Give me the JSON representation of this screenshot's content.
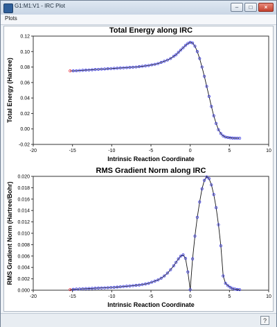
{
  "window": {
    "title": "G1:M1:V1 - IRC Plot"
  },
  "menu": {
    "items": [
      "Plots"
    ]
  },
  "buttons": {
    "minimize": "–",
    "maximize": "□",
    "close": "×"
  },
  "status": {
    "help": "?"
  },
  "colors": {
    "line": "#111111",
    "marker": "#3a3ae6",
    "start_marker": "#ee3344"
  },
  "chart_data": [
    {
      "type": "line",
      "title": "Total Energy along IRC",
      "xlabel": "Intrinsic Reaction Coordinate",
      "ylabel": "Total Energy (Hartree)",
      "xlim": [
        -20,
        10
      ],
      "ylim": [
        -0.02,
        0.12
      ],
      "xticks": [
        "-20",
        "-15",
        "-10",
        "-5",
        "0",
        "5",
        "10"
      ],
      "yticks": [
        "-0.02",
        "0.00",
        "0.02",
        "0.04",
        "0.06",
        "0.08",
        "0.10",
        "0.12"
      ],
      "grid": false,
      "series": [
        {
          "x": [
            -15.3,
            -14.9,
            -14.5,
            -14.1,
            -13.7,
            -13.3,
            -12.9,
            -12.5,
            -12.1,
            -11.7,
            -11.3,
            -10.9,
            -10.5,
            -10.1,
            -9.7,
            -9.3,
            -8.9,
            -8.5,
            -8.1,
            -7.7,
            -7.3,
            -6.9,
            -6.5,
            -6.1,
            -5.7,
            -5.3,
            -4.9,
            -4.5,
            -4.1,
            -3.7,
            -3.3,
            -2.9,
            -2.5,
            -2.1,
            -1.8,
            -1.5,
            -1.2,
            -0.9,
            -0.6,
            -0.3,
            0.0,
            0.3,
            0.6,
            0.9,
            1.2,
            1.5,
            1.8,
            2.1,
            2.4,
            2.7,
            3.0,
            3.3,
            3.6,
            3.9,
            4.2,
            4.5,
            4.8,
            5.1,
            5.4,
            5.7,
            6.0,
            6.3
          ],
          "y": [
            0.075,
            0.075,
            0.0752,
            0.0755,
            0.0758,
            0.076,
            0.0762,
            0.0765,
            0.0768,
            0.077,
            0.0773,
            0.0775,
            0.0778,
            0.078,
            0.0783,
            0.0785,
            0.0788,
            0.079,
            0.0793,
            0.0795,
            0.0798,
            0.08,
            0.0805,
            0.081,
            0.0815,
            0.082,
            0.0828,
            0.0835,
            0.0845,
            0.086,
            0.0875,
            0.089,
            0.091,
            0.094,
            0.096,
            0.099,
            0.102,
            0.105,
            0.108,
            0.1105,
            0.112,
            0.111,
            0.107,
            0.1,
            0.091,
            0.08,
            0.068,
            0.055,
            0.042,
            0.029,
            0.017,
            0.007,
            -0.001,
            -0.006,
            -0.009,
            -0.0105,
            -0.011,
            -0.0115,
            -0.0118,
            -0.0119,
            -0.012,
            -0.012
          ]
        }
      ]
    },
    {
      "type": "line",
      "title": "RMS Gradient Norm along IRC",
      "xlabel": "Intrinsic Reaction Coordinate",
      "ylabel": "RMS Gradient Norm (Hartree/Bohr)",
      "xlim": [
        -20,
        10
      ],
      "ylim": [
        0,
        0.02
      ],
      "xticks": [
        "-20",
        "-15",
        "-10",
        "-5",
        "0",
        "5",
        "10"
      ],
      "yticks": [
        "0.000",
        "0.002",
        "0.004",
        "0.006",
        "0.008",
        "0.010",
        "0.012",
        "0.014",
        "0.016",
        "0.018",
        "0.020"
      ],
      "grid": false,
      "series": [
        {
          "x": [
            -15.3,
            -14.9,
            -14.5,
            -14.1,
            -13.7,
            -13.3,
            -12.9,
            -12.5,
            -12.1,
            -11.7,
            -11.3,
            -10.9,
            -10.5,
            -10.1,
            -9.7,
            -9.3,
            -8.9,
            -8.5,
            -8.1,
            -7.7,
            -7.3,
            -6.9,
            -6.5,
            -6.1,
            -5.7,
            -5.3,
            -4.9,
            -4.5,
            -4.1,
            -3.7,
            -3.3,
            -2.9,
            -2.5,
            -2.1,
            -1.8,
            -1.5,
            -1.2,
            -0.9,
            -0.6,
            -0.3,
            0.0,
            0.3,
            0.6,
            0.9,
            1.2,
            1.5,
            1.8,
            2.1,
            2.4,
            2.7,
            3.0,
            3.3,
            3.6,
            3.9,
            4.2,
            4.5,
            4.8,
            5.1,
            5.4,
            5.7,
            6.0,
            6.3
          ],
          "y": [
            0.0001,
            0.00015,
            0.0002,
            0.00022,
            0.00025,
            0.00028,
            0.0003,
            0.00032,
            0.00035,
            0.00038,
            0.0004,
            0.00042,
            0.00045,
            0.00048,
            0.0005,
            0.00055,
            0.0006,
            0.00065,
            0.0007,
            0.00075,
            0.0008,
            0.00085,
            0.0009,
            0.001,
            0.0011,
            0.0012,
            0.0014,
            0.0016,
            0.0018,
            0.0021,
            0.0025,
            0.003,
            0.0036,
            0.0043,
            0.0049,
            0.0055,
            0.006,
            0.0062,
            0.0056,
            0.0032,
            0.0001,
            0.0055,
            0.0095,
            0.0128,
            0.0155,
            0.0178,
            0.0193,
            0.0199,
            0.0196,
            0.0185,
            0.0168,
            0.0145,
            0.0115,
            0.0078,
            0.0025,
            0.0012,
            0.0008,
            0.0005,
            0.0003,
            0.0002,
            0.00012,
            0.0001
          ]
        }
      ]
    }
  ]
}
